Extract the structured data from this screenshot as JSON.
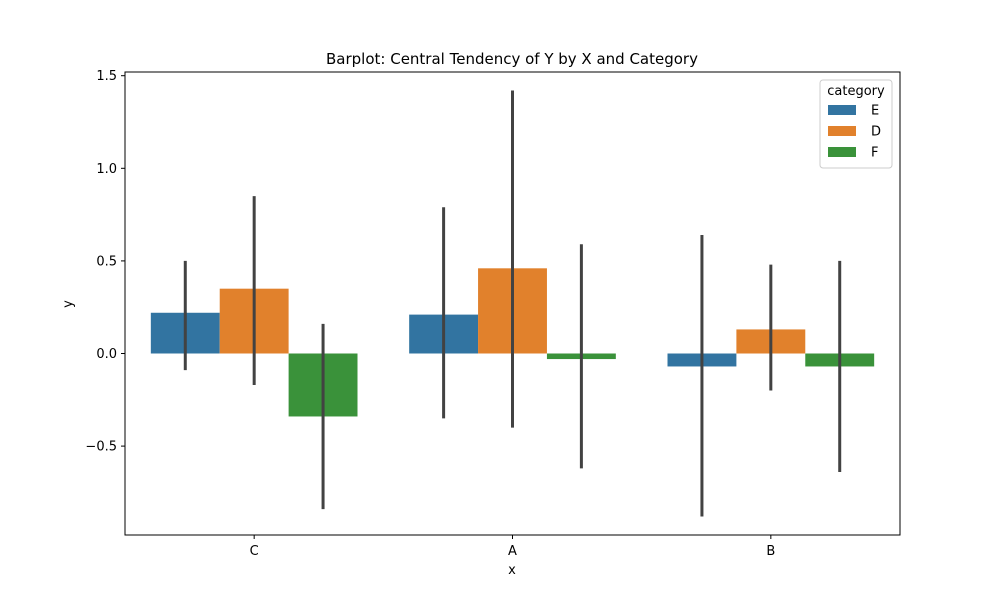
{
  "chart_data": {
    "type": "bar",
    "title": "Barplot: Central Tendency of Y by X and Category",
    "xlabel": "x",
    "ylabel": "y",
    "categories": [
      "C",
      "A",
      "B"
    ],
    "ylim": [
      -0.98,
      1.52
    ],
    "yticks": [
      -0.5,
      0.0,
      0.5,
      1.0,
      1.5
    ],
    "ytick_labels": [
      "−0.5",
      "0.0",
      "0.5",
      "1.0",
      "1.5"
    ],
    "grid": false,
    "legend": {
      "title": "category",
      "placement": "top-right"
    },
    "series": [
      {
        "name": "E",
        "color": "#3274a1",
        "values": [
          0.22,
          0.21,
          -0.07
        ],
        "ci_low": [
          -0.09,
          -0.35,
          -0.88
        ],
        "ci_high": [
          0.5,
          0.79,
          0.64
        ]
      },
      {
        "name": "D",
        "color": "#e1812c",
        "values": [
          0.35,
          0.46,
          0.13
        ],
        "ci_low": [
          -0.17,
          -0.4,
          -0.2
        ],
        "ci_high": [
          0.85,
          1.42,
          0.48
        ]
      },
      {
        "name": "F",
        "color": "#3a923a",
        "values": [
          -0.34,
          -0.03,
          -0.07
        ],
        "ci_low": [
          -0.84,
          -0.62,
          -0.64
        ],
        "ci_high": [
          0.16,
          0.59,
          0.5
        ]
      }
    ],
    "errorbar_color": "#424242"
  }
}
